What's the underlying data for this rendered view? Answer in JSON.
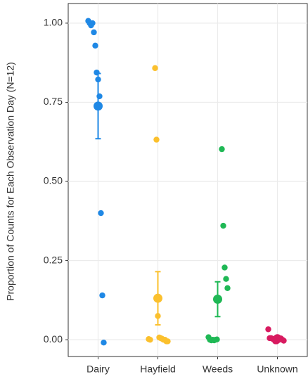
{
  "chart_data": {
    "type": "strip",
    "y_label": "Proportion of Counts for Each Observation Day  (N=12)",
    "categories": [
      "Dairy",
      "Hayfield",
      "Weeds",
      "Unknown"
    ],
    "colors": [
      "#1f88e5",
      "#fbc02d",
      "#1fb855",
      "#d81b60"
    ],
    "points": [
      [
        1.007,
        1.0,
        0.993,
        1.0,
        0.971,
        0.929,
        0.844,
        0.822,
        0.769,
        0.4,
        0.14,
        -0.009
      ],
      [
        0.858,
        0.632,
        0.075,
        0.007,
        0.005,
        0.003,
        0.0,
        0.0,
        -0.005,
        -0.005,
        0.002,
        0.0
      ],
      [
        0.602,
        0.36,
        0.228,
        0.192,
        0.163,
        0.008,
        0.0,
        -0.002,
        0.0,
        -0.002,
        0.0,
        0.001
      ],
      [
        0.033,
        0.005,
        0.005,
        0.003,
        0.0,
        -0.005,
        -0.005,
        0.0,
        0.002,
        0.004,
        0.0,
        -0.003
      ]
    ],
    "means": [
      0.738,
      0.131,
      0.128,
      0.003
    ],
    "errors": [
      0.103,
      0.084,
      0.055,
      0.003
    ],
    "ylim": [
      -0.053,
      1.062
    ],
    "yticks": [
      {
        "value": 0,
        "label": "0.00"
      },
      {
        "value": 0.25,
        "label": "0.25"
      },
      {
        "value": 0.5,
        "label": "0.50"
      },
      {
        "value": 0.75,
        "label": "0.75"
      },
      {
        "value": 1,
        "label": "1.00"
      }
    ],
    "grid": true
  }
}
